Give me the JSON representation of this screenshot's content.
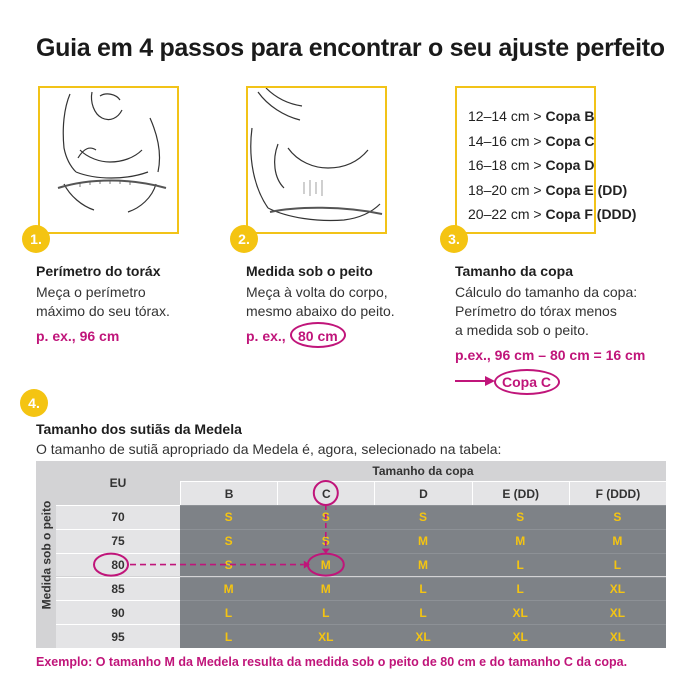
{
  "title": "Guia em 4 passos para encontrar o seu ajuste perfeito",
  "colors": {
    "accent": "#f4c412",
    "highlight": "#c0157a",
    "table_dark": "#7e8287",
    "table_light": "#d3d3d5"
  },
  "steps": [
    {
      "num": "1.",
      "heading": "Perímetro do toráx",
      "lines": [
        "Meça o perímetro",
        "máximo do seu tórax."
      ],
      "example": "p. ex., 96 cm"
    },
    {
      "num": "2.",
      "heading": "Medida sob o peito",
      "lines": [
        "Meça à volta do corpo,",
        "mesmo abaixo do peito."
      ],
      "example_prefix": "p. ex.,",
      "example_value": "80 cm"
    },
    {
      "num": "3.",
      "heading": "Tamanho da copa",
      "lines": [
        "Cálculo do tamanho da copa:",
        "Perímetro do tórax menos",
        "a medida sob o peito."
      ],
      "example": "p.ex., 96 cm – 80 cm = 16 cm",
      "result": "Copa C"
    }
  ],
  "cup_list": [
    {
      "range": "12–14 cm >",
      "cup": "Copa B"
    },
    {
      "range": "14–16 cm >",
      "cup": "Copa C"
    },
    {
      "range": "16–18 cm >",
      "cup": "Copa D"
    },
    {
      "range": "18–20 cm >",
      "cup": "Copa E (DD)"
    },
    {
      "range": "20–22 cm >",
      "cup": "Copa F (DDD)"
    }
  ],
  "step4": {
    "num": "4.",
    "heading": "Tamanho dos sutiãs da Medela",
    "text": "O tamanho de sutiã apropriado da Medela é, agora, selecionado na tabela:"
  },
  "table": {
    "side_label": "Medida sob o peito",
    "eu_label": "EU",
    "cup_header": "Tamanho da copa",
    "cups": [
      "B",
      "C",
      "D",
      "E (DD)",
      "F (DDD)"
    ],
    "rows": [
      {
        "eu": "70",
        "sizes": [
          "S",
          "S",
          "S",
          "S",
          "S"
        ]
      },
      {
        "eu": "75",
        "sizes": [
          "S",
          "S",
          "M",
          "M",
          "M"
        ]
      },
      {
        "eu": "80",
        "sizes": [
          "S",
          "M",
          "M",
          "L",
          "L"
        ]
      },
      {
        "eu": "85",
        "sizes": [
          "M",
          "M",
          "L",
          "L",
          "XL"
        ]
      },
      {
        "eu": "90",
        "sizes": [
          "L",
          "L",
          "L",
          "XL",
          "XL"
        ]
      },
      {
        "eu": "95",
        "sizes": [
          "L",
          "XL",
          "XL",
          "XL",
          "XL"
        ]
      }
    ]
  },
  "footer": "Exemplo: O tamanho M da Medela resulta da medida sob o peito de 80 cm e do tamanho C da copa."
}
